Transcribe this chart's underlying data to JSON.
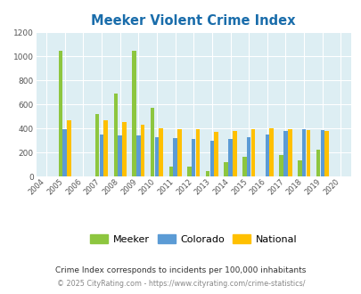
{
  "title": "Meeker Violent Crime Index",
  "years": [
    "2004",
    "2005",
    "2006",
    "2007",
    "2008",
    "2009",
    "2010",
    "2011",
    "2012",
    "2013",
    "2014",
    "2015",
    "2016",
    "2017",
    "2018",
    "2019",
    "2020"
  ],
  "meeker": [
    0,
    1045,
    0,
    520,
    690,
    1045,
    570,
    80,
    80,
    45,
    120,
    165,
    0,
    175,
    135,
    225,
    0
  ],
  "colorado": [
    0,
    397,
    0,
    348,
    342,
    342,
    325,
    318,
    308,
    298,
    310,
    328,
    348,
    375,
    395,
    388,
    0
  ],
  "national": [
    0,
    469,
    0,
    468,
    454,
    432,
    403,
    393,
    393,
    373,
    382,
    394,
    398,
    394,
    386,
    379,
    0
  ],
  "meeker_color": "#8dc63f",
  "colorado_color": "#5b9bd5",
  "national_color": "#ffc000",
  "bg_color": "#ddeef3",
  "title_color": "#1a6dab",
  "ylabel_max": 1200,
  "yticks": [
    0,
    200,
    400,
    600,
    800,
    1000,
    1200
  ],
  "footnote1": "Crime Index corresponds to incidents per 100,000 inhabitants",
  "footnote2": "© 2025 CityRating.com - https://www.cityrating.com/crime-statistics/",
  "legend_labels": [
    "Meeker",
    "Colorado",
    "National"
  ]
}
